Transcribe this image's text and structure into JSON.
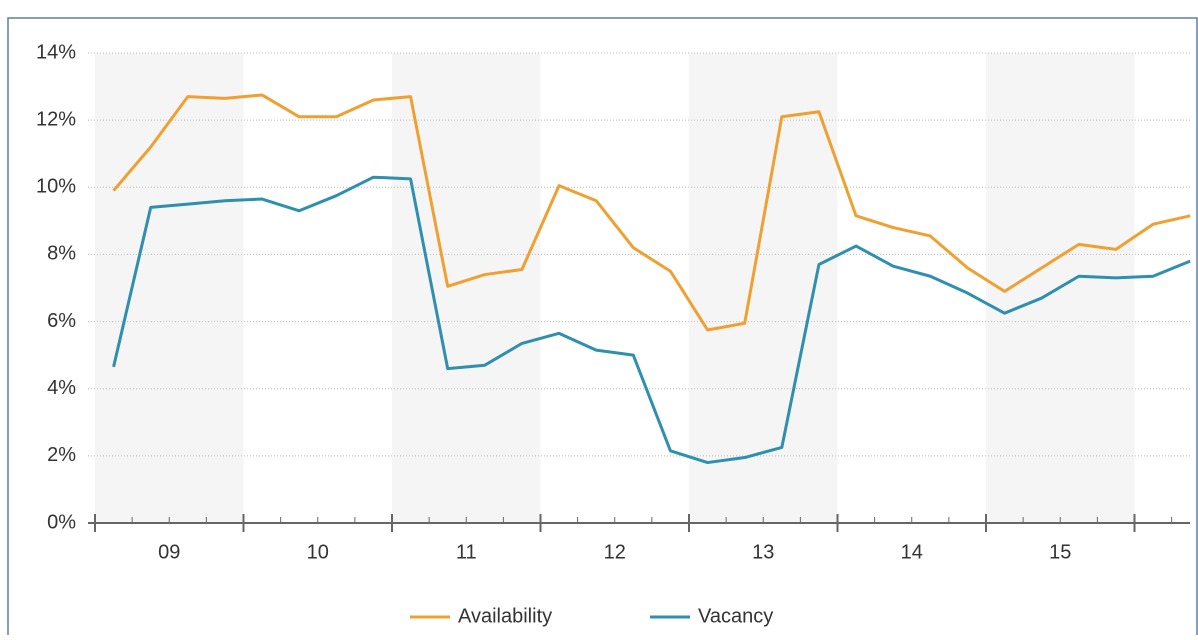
{
  "chart_data": {
    "type": "line",
    "categories": [
      null,
      null,
      null,
      null,
      null,
      null,
      null,
      null,
      null,
      null,
      null,
      null,
      null,
      null,
      null,
      null,
      null,
      null,
      null,
      null,
      null,
      null,
      null,
      null,
      null,
      null,
      null,
      null,
      null,
      null
    ],
    "x_group_labels": [
      "09",
      "10",
      "11",
      "12",
      "13",
      "14",
      "15"
    ],
    "series": [
      {
        "name": "Availability",
        "color": "#f0a030",
        "values": [
          9.9,
          11.2,
          12.7,
          12.65,
          12.75,
          12.1,
          12.1,
          12.6,
          12.7,
          7.05,
          7.4,
          7.55,
          10.05,
          9.6,
          8.2,
          7.5,
          5.75,
          5.95,
          12.1,
          12.25,
          9.15,
          8.8,
          8.55,
          7.6,
          6.9,
          7.6,
          8.3,
          8.15,
          8.9,
          9.15
        ]
      },
      {
        "name": "Vacancy",
        "color": "#2e8fae",
        "values": [
          4.65,
          9.4,
          9.5,
          9.6,
          9.65,
          9.3,
          9.75,
          10.3,
          10.25,
          4.6,
          4.7,
          5.35,
          5.65,
          5.15,
          5.0,
          2.15,
          1.8,
          1.95,
          2.25,
          7.7,
          8.25,
          7.65,
          7.35,
          6.85,
          6.25,
          6.7,
          7.35,
          7.3,
          7.35,
          7.8
        ]
      }
    ],
    "ylim": [
      0,
      14
    ],
    "yticks": [
      {
        "value": 0,
        "label": "0%"
      },
      {
        "value": 2,
        "label": "2%"
      },
      {
        "value": 4,
        "label": "4%"
      },
      {
        "value": 6,
        "label": "6%"
      },
      {
        "value": 8,
        "label": "8%"
      },
      {
        "value": 10,
        "label": "10%"
      },
      {
        "value": 12,
        "label": "12%"
      },
      {
        "value": 14,
        "label": "14%"
      }
    ],
    "grid": true,
    "legend": "bottom"
  }
}
